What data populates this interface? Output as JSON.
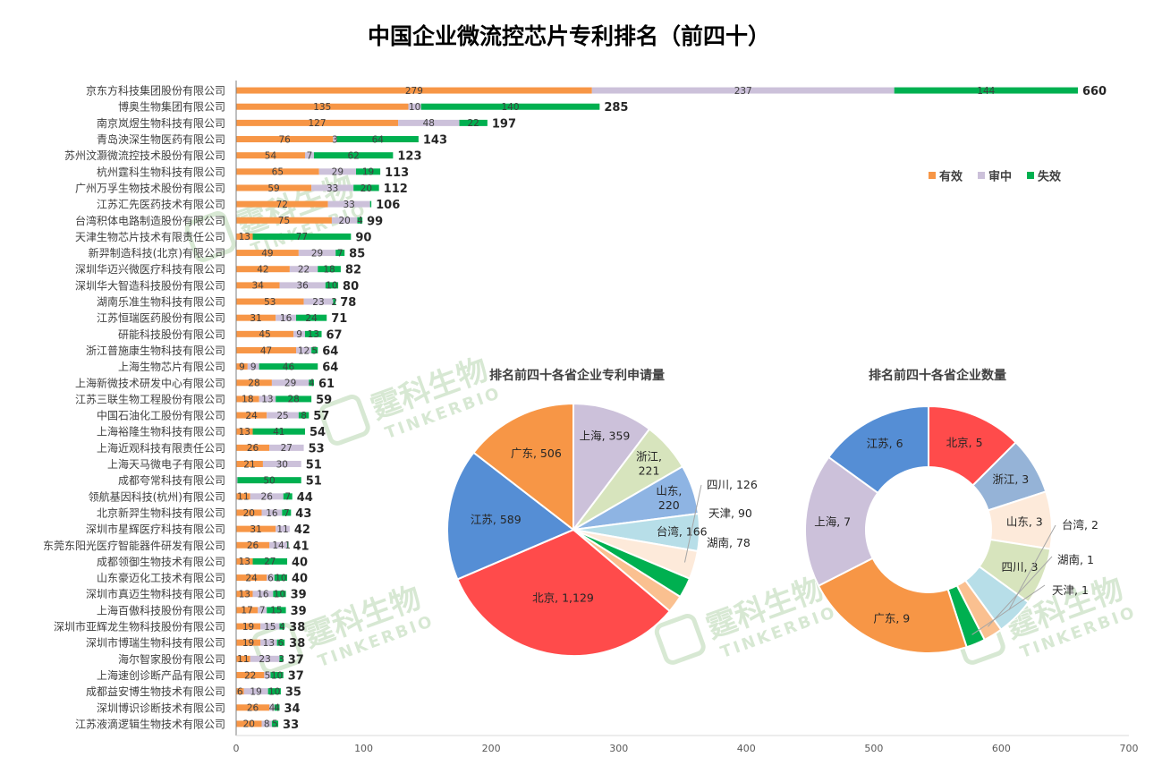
{
  "chart_data": [
    {
      "type": "bar",
      "orientation": "horizontal",
      "stacked": true,
      "title": "中国企业微流控芯片专利排名（前四十）",
      "categories": [
        "京东方科技集团股份有限公司",
        "博奥生物集团有限公司",
        "南京岚煜生物科技有限公司",
        "青岛泱深生物医药有限公司",
        "苏州汶灏微流控技术股份有限公司",
        "杭州霆科生物科技有限公司",
        "广州万孚生物技术股份有限公司",
        "江苏汇先医药技术有限公司",
        "台湾积体电路制造股份有限公司",
        "天津生物芯片技术有限责任公司",
        "新羿制造科技(北京)有限公司",
        "深圳华迈兴微医疗科技有限公司",
        "深圳华大智造科技股份有限公司",
        "湖南乐准生物科技有限公司",
        "江苏恒瑞医药股份有限公司",
        "研能科技股份有限公司",
        "浙江普施康生物科技有限公司",
        "上海生物芯片有限公司",
        "上海新微技术研发中心有限公司",
        "江苏三联生物工程股份有限公司",
        "中国石油化工股份有限公司",
        "上海裕隆生物科技有限公司",
        "上海近观科技有限责任公司",
        "上海天马微电子有限公司",
        "成都夸常科技有限公司",
        "领航基因科技(杭州)有限公司",
        "北京新羿生物科技有限公司",
        "深圳市星辉医疗科技有限公司",
        "东莞东阳光医疗智能器件研发有限公司",
        "成都领御生物技术有限公司",
        "山东豪迈化工技术有限公司",
        "深圳市真迈生物科技有限公司",
        "上海百傲科技股份有限公司",
        "深圳市亚辉龙生物科技股份有限公司",
        "深圳市博瑞生物科技有限公司",
        "海尔智家股份有限公司",
        "上海速创诊断产品有限公司",
        "成都益安博生物技术有限公司",
        "深圳博识诊断技术有限公司",
        "江苏液滴逻辑生物技术有限公司"
      ],
      "series": [
        {
          "name": "有效",
          "color": "#F79646",
          "values": [
            279,
            135,
            127,
            76,
            54,
            65,
            59,
            72,
            75,
            13,
            49,
            42,
            34,
            53,
            31,
            45,
            47,
            9,
            28,
            18,
            24,
            13,
            26,
            21,
            0,
            11,
            20,
            31,
            26,
            13,
            24,
            13,
            17,
            19,
            19,
            11,
            22,
            6,
            26,
            20
          ]
        },
        {
          "name": "审中",
          "color": "#CCC1DA",
          "values": [
            237,
            10,
            48,
            3,
            7,
            29,
            33,
            33,
            20,
            0,
            29,
            22,
            36,
            23,
            16,
            9,
            12,
            9,
            29,
            13,
            25,
            0,
            27,
            30,
            1,
            26,
            16,
            11,
            14,
            0,
            6,
            16,
            7,
            15,
            13,
            23,
            5,
            19,
            4,
            8
          ]
        },
        {
          "name": "失效",
          "color": "#00B050",
          "values": [
            144,
            140,
            22,
            64,
            62,
            19,
            20,
            1,
            4,
            77,
            7,
            18,
            10,
            2,
            24,
            13,
            5,
            46,
            4,
            28,
            8,
            41,
            0,
            0,
            50,
            7,
            7,
            0,
            1,
            27,
            10,
            10,
            15,
            4,
            6,
            3,
            10,
            10,
            4,
            5
          ]
        }
      ],
      "segment_labels": [
        [
          "279",
          "237",
          "144"
        ],
        [
          "135",
          "10",
          "140"
        ],
        [
          "127",
          "48",
          "22"
        ],
        [
          "76",
          "3",
          "64"
        ],
        [
          "54",
          "7",
          "62"
        ],
        [
          "65",
          "29",
          "19"
        ],
        [
          "59",
          "33",
          "20"
        ],
        [
          "72",
          "33",
          ""
        ],
        [
          "75",
          "20",
          "4"
        ],
        [
          "13",
          "",
          "77"
        ],
        [
          "49",
          "29",
          "7"
        ],
        [
          "42",
          "22",
          "18"
        ],
        [
          "34",
          "36",
          "10"
        ],
        [
          "53",
          "23",
          "2"
        ],
        [
          "31",
          "16",
          "24"
        ],
        [
          "45",
          "9",
          "13"
        ],
        [
          "47",
          "12",
          "5"
        ],
        [
          "9",
          "9",
          "46"
        ],
        [
          "28",
          "29",
          "4"
        ],
        [
          "18",
          "13",
          "28"
        ],
        [
          "24",
          "25",
          "8"
        ],
        [
          "13",
          "",
          "41"
        ],
        [
          "26",
          "27",
          ""
        ],
        [
          "21",
          "30",
          ""
        ],
        [
          "",
          "",
          "50"
        ],
        [
          "11",
          "26",
          "7"
        ],
        [
          "20",
          "16",
          "7"
        ],
        [
          "31",
          "11",
          ""
        ],
        [
          "26",
          "14",
          "1"
        ],
        [
          "13",
          "",
          "27"
        ],
        [
          "24",
          "6",
          "10"
        ],
        [
          "13",
          "16",
          "10"
        ],
        [
          "17",
          "7",
          "15"
        ],
        [
          "19",
          "15",
          "4"
        ],
        [
          "19",
          "13",
          "6"
        ],
        [
          "11",
          "23",
          "3"
        ],
        [
          "22",
          "5",
          "10"
        ],
        [
          "6",
          "19",
          "10"
        ],
        [
          "26",
          "4",
          "4"
        ],
        [
          "20",
          "8",
          "5"
        ]
      ],
      "totals": [
        660,
        285,
        197,
        143,
        123,
        113,
        112,
        106,
        99,
        90,
        85,
        82,
        80,
        78,
        71,
        67,
        64,
        64,
        61,
        59,
        57,
        54,
        53,
        51,
        51,
        44,
        43,
        42,
        41,
        40,
        40,
        39,
        39,
        38,
        38,
        37,
        37,
        35,
        34,
        33
      ],
      "xlim": [
        0,
        700
      ],
      "xticks": [
        "0",
        "100",
        "200",
        "300",
        "400",
        "500",
        "600",
        "700"
      ],
      "legend_position": "right"
    },
    {
      "type": "pie",
      "title": "排名前四十各省企业专利申请量",
      "slices": [
        {
          "label": "上海, 359",
          "value": 359,
          "color": "#CCC1DA"
        },
        {
          "label": "浙江, 221",
          "value": 221,
          "color": "#D7E4BD"
        },
        {
          "label": "山东, 220",
          "value": 220,
          "color": "#8EB4E3"
        },
        {
          "label": "台湾, 166",
          "value": 166,
          "color": "#B7DEE8"
        },
        {
          "label": "四川, 126",
          "value": 126,
          "color": "#FDEADA"
        },
        {
          "label": "天津, 90",
          "value": 90,
          "color": "#00B050"
        },
        {
          "label": "湖南, 78",
          "value": 78,
          "color": "#FAC090"
        },
        {
          "label": "北京, 1,129",
          "value": 1129,
          "color": "#FF4B4B"
        },
        {
          "label": "江苏, 589",
          "value": 589,
          "color": "#558ED5"
        },
        {
          "label": "广东, 506",
          "value": 506,
          "color": "#F79646"
        }
      ]
    },
    {
      "type": "pie",
      "variant": "donut",
      "title": "排名前四十各省企业数量",
      "slices": [
        {
          "label": "北京, 5",
          "value": 5,
          "color": "#FF4B4B"
        },
        {
          "label": "浙江, 3",
          "value": 3,
          "color": "#95B3D7"
        },
        {
          "label": "山东, 3",
          "value": 3,
          "color": "#FDEADA"
        },
        {
          "label": "四川, 3",
          "value": 3,
          "color": "#D7E4BD"
        },
        {
          "label": "台湾, 2",
          "value": 2,
          "color": "#B7DEE8"
        },
        {
          "label": "湖南, 1",
          "value": 1,
          "color": "#FAC090"
        },
        {
          "label": "天津, 1",
          "value": 1,
          "color": "#00B050"
        },
        {
          "label": "广东, 9",
          "value": 9,
          "color": "#F79646"
        },
        {
          "label": "上海, 7",
          "value": 7,
          "color": "#CCC1DA"
        },
        {
          "label": "江苏, 6",
          "value": 6,
          "color": "#558ED5"
        }
      ]
    }
  ],
  "watermark": {
    "cn": "霆科生物",
    "en": "TINKERBIO",
    "color": "#4E9A3A"
  }
}
